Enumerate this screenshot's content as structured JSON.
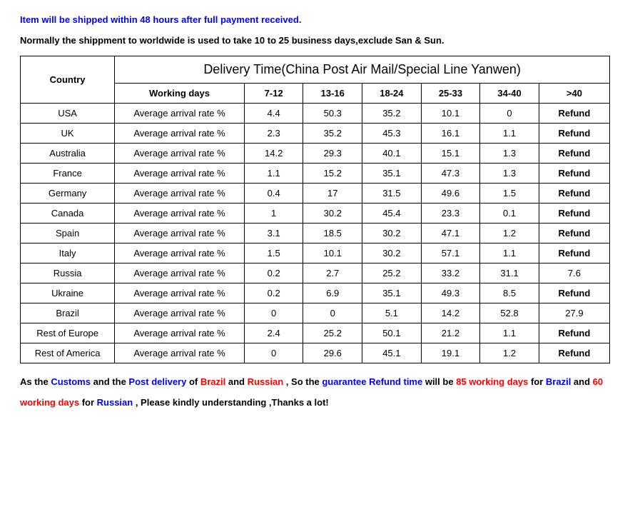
{
  "intro": {
    "line1": "Item will be shipped within 48 hours after full payment received.",
    "line2": "Normally the shippment to worldwide is used to take 10 to 25 business days,exclude San & Sun."
  },
  "table": {
    "country_header": "Country",
    "title": "Delivery Time(China Post Air Mail/Special Line Yanwen)",
    "working_days_label": "Working days",
    "rate_label": "Average arrival rate %",
    "refund_label": "Refund",
    "ranges": [
      "7-12",
      "13-16",
      "18-24",
      "25-33",
      "34-40",
      ">40"
    ],
    "col_widths": [
      "16%",
      "22%",
      "10%",
      "10%",
      "10%",
      "10%",
      "10%",
      "12%"
    ],
    "rows": [
      {
        "country": "USA",
        "values": [
          "4.4",
          "50.3",
          "35.2",
          "10.1",
          "0"
        ],
        "last": "Refund"
      },
      {
        "country": "UK",
        "values": [
          "2.3",
          "35.2",
          "45.3",
          "16.1",
          "1.1"
        ],
        "last": "Refund"
      },
      {
        "country": "Australia",
        "values": [
          "14.2",
          "29.3",
          "40.1",
          "15.1",
          "1.3"
        ],
        "last": "Refund"
      },
      {
        "country": "France",
        "values": [
          "1.1",
          "15.2",
          "35.1",
          "47.3",
          "1.3"
        ],
        "last": "Refund"
      },
      {
        "country": "Germany",
        "values": [
          "0.4",
          "17",
          "31.5",
          "49.6",
          "1.5"
        ],
        "last": "Refund"
      },
      {
        "country": "Canada",
        "values": [
          "1",
          "30.2",
          "45.4",
          "23.3",
          "0.1"
        ],
        "last": "Refund"
      },
      {
        "country": "Spain",
        "values": [
          "3.1",
          "18.5",
          "30.2",
          "47.1",
          "1.2"
        ],
        "last": "Refund"
      },
      {
        "country": "Italy",
        "values": [
          "1.5",
          "10.1",
          "30.2",
          "57.1",
          "1.1"
        ],
        "last": "Refund"
      },
      {
        "country": "Russia",
        "values": [
          "0.2",
          "2.7",
          "25.2",
          "33.2",
          "31.1"
        ],
        "last": "7.6"
      },
      {
        "country": "Ukraine",
        "values": [
          "0.2",
          "6.9",
          "35.1",
          "49.3",
          "8.5"
        ],
        "last": "Refund"
      },
      {
        "country": "Brazil",
        "values": [
          "0",
          "0",
          "5.1",
          "14.2",
          "52.8"
        ],
        "last": "27.9"
      },
      {
        "country": "Rest of Europe",
        "values": [
          "2.4",
          "25.2",
          "50.1",
          "21.2",
          "1.1"
        ],
        "last": "Refund"
      },
      {
        "country": "Rest of America",
        "values": [
          "0",
          "29.6",
          "45.1",
          "19.1",
          "1.2"
        ],
        "last": "Refund"
      }
    ]
  },
  "footer": {
    "segments": [
      {
        "text": "As the ",
        "cls": "black"
      },
      {
        "text": "Customs",
        "cls": "blue"
      },
      {
        "text": " and the ",
        "cls": "black"
      },
      {
        "text": "Post delivery",
        "cls": "blue"
      },
      {
        "text": " of ",
        "cls": "black"
      },
      {
        "text": "Brazil",
        "cls": "red"
      },
      {
        "text": " and ",
        "cls": "black"
      },
      {
        "text": "Russian",
        "cls": "red"
      },
      {
        "text": " , So the ",
        "cls": "black"
      },
      {
        "text": "guarantee Refund time",
        "cls": "blue"
      },
      {
        "text": " will be ",
        "cls": "black"
      },
      {
        "text": "85 working days",
        "cls": "red"
      },
      {
        "text": " for ",
        "cls": "black"
      },
      {
        "text": "Brazil",
        "cls": "blue"
      },
      {
        "text": " and ",
        "cls": "black"
      },
      {
        "text": "60 working days",
        "cls": "red"
      },
      {
        "text": " for ",
        "cls": "black"
      },
      {
        "text": "Russian",
        "cls": "blue"
      },
      {
        "text": " , Please kindly understanding ,Thanks a lot!",
        "cls": "black"
      }
    ]
  }
}
